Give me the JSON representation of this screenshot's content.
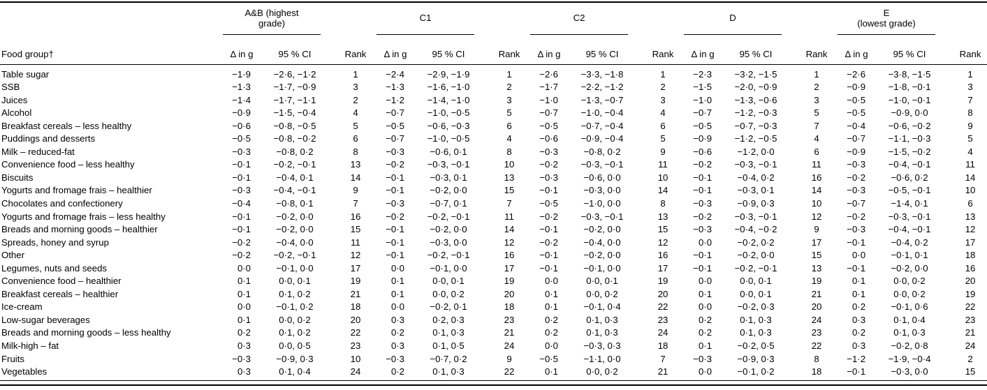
{
  "table": {
    "food_group_header": "Food group†",
    "sub_headers": {
      "delta": "Δ in g",
      "ci": "95 % CI",
      "rank": "Rank"
    },
    "groups": [
      {
        "id": "ab",
        "label": "A&B (highest\ngrade)"
      },
      {
        "id": "c1",
        "label": "C1"
      },
      {
        "id": "c2",
        "label": "C2"
      },
      {
        "id": "d",
        "label": "D"
      },
      {
        "id": "e",
        "label": "E\n(lowest grade)"
      }
    ],
    "rows": [
      {
        "food": "Table sugar",
        "values": [
          "−1·9",
          "−2·6, −1·2",
          "1",
          "−2·4",
          "−2·9, −1·9",
          "1",
          "−2·6",
          "−3·3, −1·8",
          "1",
          "−2·3",
          "−3·2, −1·5",
          "1",
          "−2·6",
          "−3·8, −1·5",
          "1"
        ]
      },
      {
        "food": "SSB",
        "values": [
          "−1·3",
          "−1·7, −0·9",
          "3",
          "−1·3",
          "−1·6, −1·0",
          "2",
          "−1·7",
          "−2·2, −1·2",
          "2",
          "−1·5",
          "−2·0, −0·9",
          "2",
          "−0·9",
          "−1·8, −0·1",
          "3"
        ]
      },
      {
        "food": "Juices",
        "values": [
          "−1·4",
          "−1·7, −1·1",
          "2",
          "−1·2",
          "−1·4, −1·0",
          "3",
          "−1·0",
          "−1·3, −0·7",
          "3",
          "−1·0",
          "−1·3, −0·6",
          "3",
          "−0·5",
          "−1·0, −0·1",
          "7"
        ]
      },
      {
        "food": "Alcohol",
        "values": [
          "−0·9",
          "−1·5, −0·4",
          "4",
          "−0·7",
          "−1·0, −0·5",
          "5",
          "−0·7",
          "−1·0, −0·4",
          "4",
          "−0·7",
          "−1·2, −0·3",
          "5",
          "−0·5",
          "−0·9, 0·0",
          "8"
        ]
      },
      {
        "food": "Breakfast cereals – less healthy",
        "values": [
          "−0·6",
          "−0·8, −0·5",
          "5",
          "−0·5",
          "−0·6, −0·3",
          "6",
          "−0·5",
          "−0·7, −0·4",
          "6",
          "−0·5",
          "−0·7, −0·3",
          "7",
          "−0·4",
          "−0·6, −0·2",
          "9"
        ]
      },
      {
        "food": "Puddings and desserts",
        "values": [
          "−0·5",
          "−0·8, −0·2",
          "6",
          "−0·7",
          "−1·0, −0·5",
          "4",
          "−0·6",
          "−0·9, −0·4",
          "5",
          "−0·9",
          "−1·2, −0·5",
          "4",
          "−0·7",
          "−1·1, −0·3",
          "5"
        ]
      },
      {
        "food": "Milk – reduced-fat",
        "values": [
          "−0·3",
          "−0·8, 0·2",
          "8",
          "−0·3",
          "−0·6, 0·1",
          "8",
          "−0·3",
          "−0·8, 0·2",
          "9",
          "−0·6",
          "−1·2, 0·0",
          "6",
          "−0·9",
          "−1·5, −0·2",
          "4"
        ]
      },
      {
        "food": "Convenience food – less healthy",
        "values": [
          "−0·1",
          "−0·2, −0·1",
          "13",
          "−0·2",
          "−0·3, −0·1",
          "10",
          "−0·2",
          "−0·3, −0·1",
          "11",
          "−0·2",
          "−0·3, −0·1",
          "11",
          "−0·3",
          "−0·4, −0·1",
          "11"
        ]
      },
      {
        "food": "Biscuits",
        "values": [
          "−0·1",
          "−0·4, 0·1",
          "14",
          "−0·1",
          "−0·3, 0·1",
          "13",
          "−0·3",
          "−0·6, 0·0",
          "10",
          "−0·1",
          "−0·4, 0·2",
          "16",
          "−0·2",
          "−0·6, 0·2",
          "14"
        ]
      },
      {
        "food": "Yogurts and fromage frais – healthier",
        "values": [
          "−0·3",
          "−0·4, −0·1",
          "9",
          "−0·1",
          "−0·2, 0·0",
          "15",
          "−0·1",
          "−0·3, 0·0",
          "14",
          "−0·1",
          "−0·3, 0·1",
          "14",
          "−0·3",
          "−0·5, −0·1",
          "10"
        ]
      },
      {
        "food": "Chocolates and confectionery",
        "values": [
          "−0·4",
          "−0·8, 0·1",
          "7",
          "−0·3",
          "−0·7, 0·1",
          "7",
          "−0·5",
          "−1·0, 0·0",
          "8",
          "−0·3",
          "−0·9, 0·3",
          "10",
          "−0·7",
          "−1·4, 0·1",
          "6"
        ]
      },
      {
        "food": "Yogurts and fromage frais – less healthy",
        "values": [
          "−0·1",
          "−0·2, 0·0",
          "16",
          "−0·2",
          "−0·2, −0·1",
          "11",
          "−0·2",
          "−0·3, −0·1",
          "13",
          "−0·2",
          "−0·3, −0·1",
          "12",
          "−0·2",
          "−0·3, −0·1",
          "13"
        ]
      },
      {
        "food": "Breads and morning goods – healthier",
        "values": [
          "−0·1",
          "−0·2, 0·0",
          "15",
          "−0·1",
          "−0·2, 0·0",
          "14",
          "−0·1",
          "−0·2, 0·0",
          "15",
          "−0·3",
          "−0·4, −0·2",
          "9",
          "−0·3",
          "−0·4, −0·1",
          "12"
        ]
      },
      {
        "food": "Spreads, honey and syrup",
        "values": [
          "−0·2",
          "−0·4, 0·0",
          "11",
          "−0·1",
          "−0·3, 0·0",
          "12",
          "−0·2",
          "−0·4, 0·0",
          "12",
          "0·0",
          "−0·2, 0·2",
          "17",
          "−0·1",
          "−0·4, 0·2",
          "17"
        ]
      },
      {
        "food": "Other",
        "values": [
          "−0·2",
          "−0·2, −0·1",
          "12",
          "−0·1",
          "−0·2, −0·1",
          "16",
          "−0·1",
          "−0·2, 0·0",
          "16",
          "−0·1",
          "−0·2, 0·0",
          "15",
          "0·0",
          "−0·1, 0·1",
          "18"
        ]
      },
      {
        "food": "Legumes, nuts and seeds",
        "values": [
          "0·0",
          "−0·1, 0·0",
          "17",
          "0·0",
          "−0·1, 0·0",
          "17",
          "−0·1",
          "−0·1, 0·0",
          "17",
          "−0·1",
          "−0·2, −0·1",
          "13",
          "−0·1",
          "−0·2, 0·0",
          "16"
        ]
      },
      {
        "food": "Convenience food – healthier",
        "values": [
          "0·1",
          "0·0, 0·1",
          "19",
          "0·1",
          "0·0, 0·1",
          "19",
          "0·0",
          "0·0, 0·1",
          "19",
          "0·0",
          "0·0, 0·1",
          "19",
          "0·1",
          "0·0, 0·2",
          "20"
        ]
      },
      {
        "food": "Breakfast cereals – healthier",
        "values": [
          "0·1",
          "0·1, 0·2",
          "21",
          "0·1",
          "0·0, 0·2",
          "20",
          "0·1",
          "0·0, 0·2",
          "20",
          "0·1",
          "0·0, 0·1",
          "21",
          "0·1",
          "0·0, 0·2",
          "19"
        ]
      },
      {
        "food": "Ice-cream",
        "values": [
          "0·0",
          "−0·1, 0·2",
          "18",
          "0·0",
          "−0·2, 0·1",
          "18",
          "0·1",
          "−0·1, 0·4",
          "22",
          "0·0",
          "−0·2, 0·3",
          "20",
          "0·2",
          "−0·1, 0·6",
          "22"
        ]
      },
      {
        "food": "Low-sugar beverages",
        "values": [
          "0·1",
          "0·0, 0·2",
          "20",
          "0·3",
          "0·2, 0·3",
          "23",
          "0·2",
          "0·1, 0·3",
          "23",
          "0·2",
          "0·1, 0·3",
          "24",
          "0·3",
          "0·1, 0·4",
          "23"
        ]
      },
      {
        "food": "Breads and morning goods – less healthy",
        "values": [
          "0·2",
          "0·1, 0·2",
          "22",
          "0·2",
          "0·1, 0·3",
          "21",
          "0·2",
          "0·1, 0·3",
          "24",
          "0·2",
          "0·1, 0·3",
          "23",
          "0·2",
          "0·1, 0·3",
          "21"
        ]
      },
      {
        "food": "Milk-high – fat",
        "values": [
          "0·3",
          "0·0, 0·5",
          "23",
          "0·3",
          "0·1, 0·5",
          "24",
          "0·0",
          "−0·3, 0·3",
          "18",
          "0·1",
          "−0·2, 0·5",
          "22",
          "0·3",
          "−0·2, 0·8",
          "24"
        ]
      },
      {
        "food": "Fruits",
        "values": [
          "−0·3",
          "−0·9, 0·3",
          "10",
          "−0·3",
          "−0·7, 0·2",
          "9",
          "−0·5",
          "−1·1, 0·0",
          "7",
          "−0·3",
          "−0·9, 0·3",
          "8",
          "−1·2",
          "−1·9, −0·4",
          "2"
        ]
      },
      {
        "food": "Vegetables",
        "values": [
          "0·3",
          "0·1, 0·4",
          "24",
          "0·2",
          "0·1, 0·3",
          "22",
          "0·1",
          "0·0, 0·2",
          "21",
          "0·0",
          "−0·1, 0·2",
          "18",
          "−0·1",
          "−0·3, 0·0",
          "15"
        ]
      }
    ]
  }
}
